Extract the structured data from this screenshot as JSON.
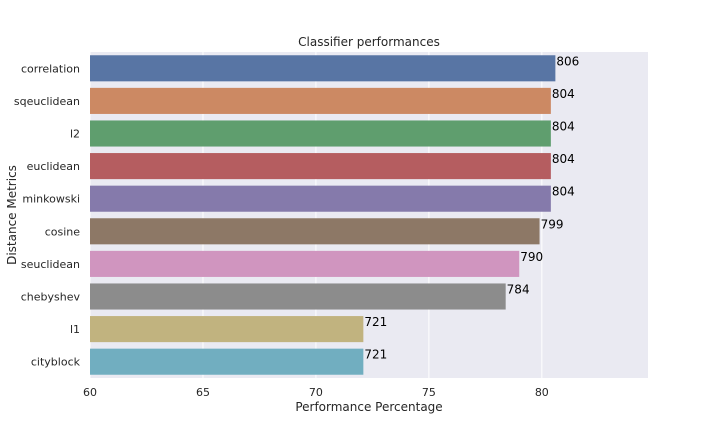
{
  "chart_data": {
    "type": "bar",
    "orientation": "horizontal",
    "title": "Classifier performances",
    "xlabel": "Performance Percentage",
    "ylabel": "Distance Metrics",
    "categories": [
      "correlation",
      "sqeuclidean",
      "l2",
      "euclidean",
      "minkowski",
      "cosine",
      "seuclidean",
      "chebyshev",
      "l1",
      "cityblock"
    ],
    "values": [
      80.6,
      80.4,
      80.4,
      80.4,
      80.4,
      79.9,
      79.0,
      78.4,
      72.1,
      72.1
    ],
    "data_labels": [
      "806",
      "804",
      "804",
      "804",
      "804",
      "799",
      "790",
      "784",
      "721",
      "721"
    ],
    "xlim": [
      60,
      84.7
    ],
    "xticks": [
      60,
      65,
      70,
      75,
      80
    ],
    "grid": true,
    "colors": [
      "#5875a4",
      "#cc8963",
      "#5f9e6e",
      "#b55d60",
      "#857aab",
      "#8d7866",
      "#d095bf",
      "#8c8c8c",
      "#c1b37f",
      "#71aec0"
    ],
    "background": "#eaeaf2"
  }
}
